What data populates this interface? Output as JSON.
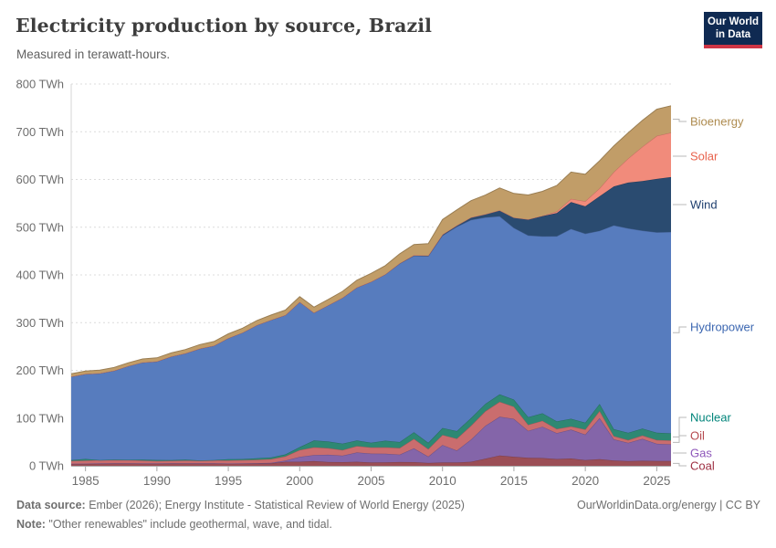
{
  "header": {
    "title": "Electricity production by source, Brazil",
    "subtitle": "Measured in terawatt-hours.",
    "logo": {
      "line1": "Our World",
      "line2": "in Data"
    }
  },
  "chart_data": {
    "type": "area",
    "stacked": true,
    "title": "Electricity production by source, Brazil",
    "unit": "TWh",
    "grid": true,
    "legend_position": "right",
    "xlim": [
      1984,
      2026
    ],
    "ylim": [
      0,
      800
    ],
    "x_ticks": [
      1985,
      1990,
      1995,
      2000,
      2005,
      2010,
      2015,
      2020,
      2025
    ],
    "y_ticks": [
      {
        "value": 0,
        "label": "0 TWh"
      },
      {
        "value": 100,
        "label": "100 TWh"
      },
      {
        "value": 200,
        "label": "200 TWh"
      },
      {
        "value": 300,
        "label": "300 TWh"
      },
      {
        "value": 400,
        "label": "400 TWh"
      },
      {
        "value": 500,
        "label": "500 TWh"
      },
      {
        "value": 600,
        "label": "600 TWh"
      },
      {
        "value": 700,
        "label": "700 TWh"
      },
      {
        "value": 800,
        "label": "800 TWh"
      }
    ],
    "x": [
      1984,
      1985,
      1986,
      1987,
      1988,
      1989,
      1990,
      1991,
      1992,
      1993,
      1994,
      1995,
      1996,
      1997,
      1998,
      1999,
      2000,
      2001,
      2002,
      2003,
      2004,
      2005,
      2006,
      2007,
      2008,
      2009,
      2010,
      2011,
      2012,
      2013,
      2014,
      2015,
      2016,
      2017,
      2018,
      2019,
      2020,
      2021,
      2022,
      2023,
      2024,
      2025,
      2026
    ],
    "series": [
      {
        "name": "Coal",
        "color": "#9b4e56",
        "label_color": "#9e2f42",
        "values": [
          4.0,
          4.1,
          4.5,
          4.8,
          4.9,
          4.6,
          4.6,
          4.8,
          4.9,
          4.9,
          5.2,
          4.6,
          4.7,
          5.0,
          5.3,
          8.5,
          8.5,
          9.8,
          7.9,
          7.6,
          8.4,
          6.8,
          7.2,
          7.9,
          7.7,
          5.9,
          6.8,
          6.9,
          8.4,
          14.8,
          21.6,
          18.9,
          16.8,
          16.3,
          14.2,
          15.3,
          11.9,
          14.0,
          10.9,
          9.7,
          10.5,
          10.2,
          10.0
        ]
      },
      {
        "name": "Gas",
        "color": "#8465a9",
        "label_color": "#8e57ba",
        "values": [
          0.4,
          0.4,
          0.4,
          0.4,
          0.4,
          0.3,
          0.3,
          0.3,
          0.3,
          0.3,
          0.2,
          0.2,
          0.3,
          0.5,
          1.0,
          2.5,
          10.0,
          12.5,
          15.3,
          13.6,
          19.5,
          18.8,
          18.1,
          15.5,
          28.8,
          13.4,
          36.9,
          25.1,
          46.8,
          69.0,
          81.1,
          79.5,
          56.5,
          65.6,
          54.3,
          60.4,
          53.5,
          86.0,
          44.6,
          38.3,
          46.0,
          36.0,
          35.0
        ]
      },
      {
        "name": "Oil",
        "color": "#ca6d6e",
        "label_color": "#b5494f",
        "values": [
          6.0,
          6.5,
          7.0,
          6.8,
          6.6,
          6.2,
          5.1,
          5.5,
          5.8,
          5.6,
          6.0,
          6.5,
          6.8,
          7.2,
          7.8,
          9.0,
          14.7,
          16.5,
          14.0,
          12.0,
          13.5,
          12.8,
          13.5,
          14.0,
          20.0,
          16.0,
          21.0,
          25.0,
          29.0,
          30.5,
          31.5,
          25.7,
          12.7,
          12.4,
          8.9,
          6.8,
          10.8,
          15.0,
          6.7,
          6.0,
          7.0,
          8.0,
          8.0
        ]
      },
      {
        "name": "Nuclear",
        "color": "#2e8873",
        "label_color": "#00847a",
        "values": [
          1.7,
          3.4,
          0.1,
          1.0,
          0.6,
          1.8,
          2.2,
          1.4,
          1.8,
          0.4,
          0.5,
          2.5,
          2.4,
          3.2,
          3.3,
          4.0,
          6.0,
          14.3,
          13.8,
          13.4,
          11.6,
          9.9,
          13.8,
          12.4,
          14.0,
          13.0,
          14.5,
          15.7,
          16.0,
          15.4,
          15.4,
          14.7,
          16.0,
          15.7,
          15.7,
          16.1,
          14.1,
          14.7,
          14.6,
          15.1,
          14.3,
          15.0,
          15.0
        ]
      },
      {
        "name": "Hydropower",
        "color": "#577cbe",
        "label_color": "#3c67b1",
        "values": [
          175.0,
          178.2,
          182.0,
          186.5,
          196.7,
          204.0,
          206.7,
          217.0,
          223.0,
          234.5,
          240.0,
          253.9,
          265.1,
          279.0,
          288.5,
          292.0,
          304.4,
          267.9,
          285.6,
          305.6,
          320.8,
          337.5,
          348.8,
          374.0,
          369.6,
          391.0,
          403.3,
          428.3,
          415.3,
          390.9,
          373.4,
          359.7,
          380.9,
          370.9,
          388.0,
          397.9,
          396.3,
          362.8,
          427.1,
          428.5,
          415.0,
          420.0,
          422.0
        ]
      },
      {
        "name": "Wind",
        "color": "#2a4b70",
        "label_color": "#1e3e6e",
        "values": [
          0,
          0,
          0,
          0,
          0,
          0,
          0,
          0,
          0,
          0,
          0,
          0,
          0,
          0,
          0,
          0,
          0,
          0,
          0,
          0.1,
          0.1,
          0.1,
          0.2,
          0.7,
          1.2,
          1.2,
          2.2,
          2.7,
          5.1,
          6.6,
          12.2,
          21.6,
          33.5,
          42.4,
          48.5,
          56.1,
          57.1,
          72.3,
          81.6,
          95.8,
          104.0,
          112.0,
          115.0
        ]
      },
      {
        "name": "Solar",
        "color": "#f18b7b",
        "label_color": "#e8624c",
        "values": [
          0,
          0,
          0,
          0,
          0,
          0,
          0,
          0,
          0,
          0,
          0,
          0,
          0,
          0,
          0,
          0,
          0,
          0,
          0,
          0,
          0,
          0,
          0,
          0,
          0,
          0,
          0,
          0,
          0,
          0.01,
          0.02,
          0.06,
          0.09,
          0.8,
          3.5,
          6.7,
          10.7,
          16.8,
          30.1,
          50.6,
          72.0,
          90.0,
          93.0
        ]
      },
      {
        "name": "Bioenergy",
        "color": "#c19d68",
        "label_color": "#ae8b4f",
        "values": [
          5.9,
          6.1,
          6.3,
          6.5,
          6.7,
          7.0,
          7.4,
          7.6,
          7.8,
          8.2,
          8.5,
          8.9,
          9.2,
          9.6,
          10.0,
          10.4,
          10.9,
          11.5,
          12.2,
          13.3,
          15.0,
          17.3,
          18.0,
          19.7,
          22.5,
          25.0,
          31.2,
          32.5,
          35.0,
          40.0,
          46.9,
          50.6,
          51.0,
          51.0,
          54.3,
          56.2,
          56.5,
          57.6,
          54.9,
          53.8,
          55.0,
          56.0,
          56.5
        ]
      }
    ]
  },
  "footer": {
    "sources_label": "Data source:",
    "sources_text": " Ember (2026); Energy Institute - Statistical Review of World Energy (2025)",
    "note_label": "Note:",
    "note_text": " \"Other renewables\" include geothermal, wave, and tidal.",
    "link": "OurWorldinData.org/energy | CC BY"
  }
}
